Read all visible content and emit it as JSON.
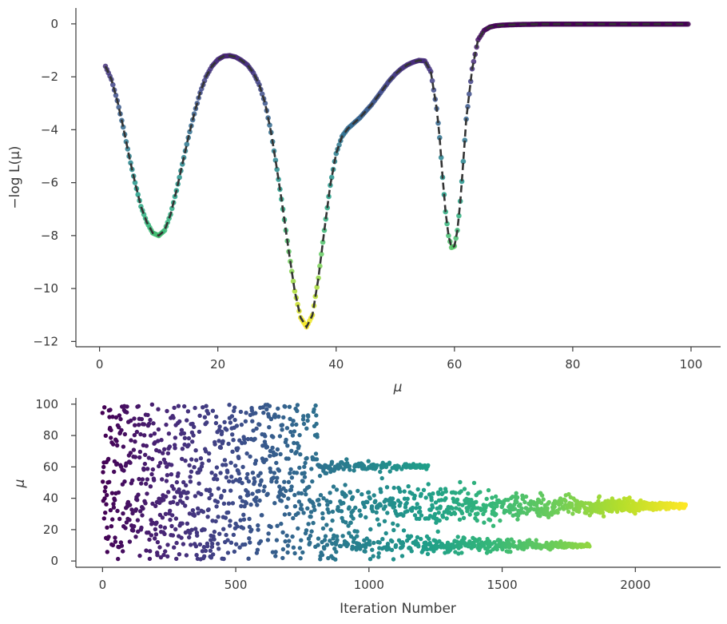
{
  "chart_data": [
    {
      "type": "line",
      "panel": "top",
      "xlabel": "μ",
      "ylabel": "−log L(μ)",
      "xlim": [
        -4,
        105
      ],
      "ylim": [
        -12.2,
        0.6
      ],
      "xticks": [
        0,
        20,
        40,
        60,
        80,
        100
      ],
      "yticks": [
        0,
        -2,
        -4,
        -6,
        -8,
        -10,
        -12
      ],
      "xtick_labels": [
        "0",
        "20",
        "40",
        "60",
        "80",
        "100"
      ],
      "ytick_labels": [
        "0",
        "−2",
        "−4",
        "−6",
        "−8",
        "−10",
        "−12"
      ],
      "grid": false,
      "line_style": "dashed",
      "line_color": "#333333",
      "colormap": "viridis",
      "x": [
        1,
        2,
        3,
        4,
        5,
        6,
        7,
        8,
        9,
        10,
        11,
        12,
        13,
        14,
        15,
        16,
        17,
        18,
        19,
        20,
        21,
        22,
        23,
        24,
        25,
        26,
        27,
        28,
        29,
        30,
        31,
        32,
        33,
        34,
        35,
        36,
        37,
        38,
        39,
        40,
        41,
        42,
        43,
        44,
        45,
        46,
        47,
        48,
        49,
        50,
        51,
        52,
        53,
        54,
        55,
        56,
        57,
        57.5,
        58,
        58.5,
        59,
        59.5,
        60,
        60.5,
        61,
        61.5,
        62,
        63,
        64,
        65,
        66,
        67,
        68,
        70,
        72,
        75,
        80,
        85,
        90,
        95,
        99.5
      ],
      "y": [
        -1.6,
        -2.1,
        -2.9,
        -3.9,
        -5.0,
        -6.0,
        -6.9,
        -7.5,
        -7.9,
        -8.0,
        -7.8,
        -7.2,
        -6.3,
        -5.3,
        -4.3,
        -3.4,
        -2.6,
        -2.0,
        -1.6,
        -1.35,
        -1.22,
        -1.2,
        -1.25,
        -1.38,
        -1.55,
        -1.85,
        -2.3,
        -3.0,
        -4.1,
        -5.5,
        -7.0,
        -8.6,
        -10.1,
        -11.1,
        -11.45,
        -11.0,
        -9.6,
        -7.8,
        -6.1,
        -4.9,
        -4.25,
        -3.95,
        -3.75,
        -3.55,
        -3.3,
        -3.05,
        -2.75,
        -2.45,
        -2.15,
        -1.9,
        -1.7,
        -1.55,
        -1.45,
        -1.38,
        -1.4,
        -1.8,
        -3.2,
        -4.3,
        -5.8,
        -7.1,
        -8.0,
        -8.45,
        -8.4,
        -7.8,
        -6.7,
        -5.2,
        -3.6,
        -1.7,
        -0.6,
        -0.25,
        -0.12,
        -0.07,
        -0.05,
        -0.03,
        -0.02,
        -0.01,
        -0.01,
        -0.01,
        -0.01,
        -0.01,
        -0.01
      ]
    },
    {
      "type": "scatter",
      "panel": "bottom",
      "xlabel": "Iteration Number",
      "ylabel": "μ",
      "xlim": [
        -100,
        2320
      ],
      "ylim": [
        -4,
        104
      ],
      "xticks": [
        0,
        500,
        1000,
        1500,
        2000
      ],
      "yticks": [
        0,
        20,
        40,
        60,
        80,
        100
      ],
      "xtick_labels": [
        "0",
        "500",
        "1000",
        "1500",
        "2000"
      ],
      "ytick_labels": [
        "0",
        "20",
        "40",
        "60",
        "80",
        "100"
      ],
      "grid": false,
      "colormap": "viridis",
      "color_by": "iteration",
      "n_points": 2190,
      "phases": [
        {
          "iterations": [
            0,
            810
          ],
          "distribution": "uniform",
          "range": [
            1,
            100
          ]
        },
        {
          "iterations": [
            810,
            1230
          ],
          "mode": 60,
          "spread_start": 4,
          "spread_end": 1
        },
        {
          "iterations": [
            810,
            2190
          ],
          "mode": 35,
          "spread_start": 16,
          "spread_end": 1
        },
        {
          "iterations": [
            810,
            1830
          ],
          "mode": 10,
          "spread_start": 8,
          "spread_end": 1
        }
      ]
    }
  ]
}
